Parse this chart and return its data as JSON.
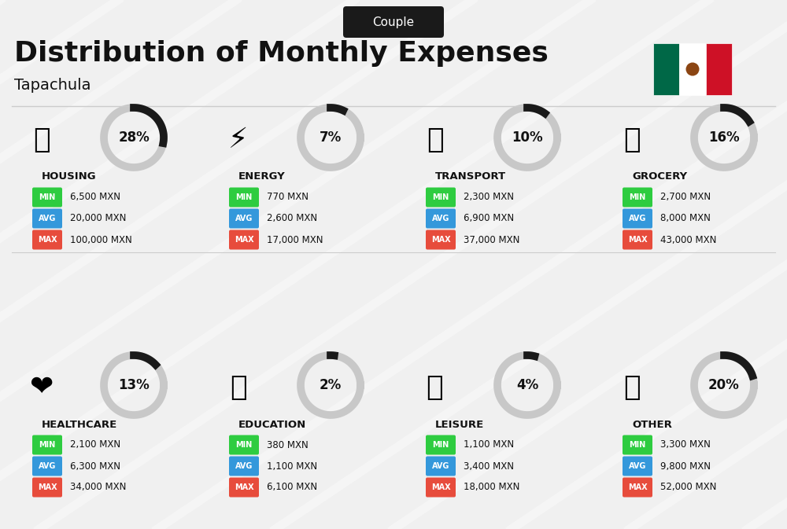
{
  "title": "Distribution of Monthly Expenses",
  "subtitle": "Tapachula",
  "badge": "Couple",
  "bg_color": "#f0f0f0",
  "categories": [
    {
      "name": "HOUSING",
      "pct": 28,
      "icon": "🏢",
      "min": "6,500 MXN",
      "avg": "20,000 MXN",
      "max": "100,000 MXN",
      "col": 0,
      "row": 0
    },
    {
      "name": "ENERGY",
      "pct": 7,
      "icon": "⚡",
      "min": "770 MXN",
      "avg": "2,600 MXN",
      "max": "17,000 MXN",
      "col": 1,
      "row": 0
    },
    {
      "name": "TRANSPORT",
      "pct": 10,
      "icon": "🚌",
      "min": "2,300 MXN",
      "avg": "6,900 MXN",
      "max": "37,000 MXN",
      "col": 2,
      "row": 0
    },
    {
      "name": "GROCERY",
      "pct": 16,
      "icon": "🛒",
      "min": "2,700 MXN",
      "avg": "8,000 MXN",
      "max": "43,000 MXN",
      "col": 3,
      "row": 0
    },
    {
      "name": "HEALTHCARE",
      "pct": 13,
      "icon": "❤️",
      "min": "2,100 MXN",
      "avg": "6,300 MXN",
      "max": "34,000 MXN",
      "col": 0,
      "row": 1
    },
    {
      "name": "EDUCATION",
      "pct": 2,
      "icon": "🎓",
      "min": "380 MXN",
      "avg": "1,100 MXN",
      "max": "6,100 MXN",
      "col": 1,
      "row": 1
    },
    {
      "name": "LEISURE",
      "pct": 4,
      "icon": "🛍️",
      "min": "1,100 MXN",
      "avg": "3,400 MXN",
      "max": "18,000 MXN",
      "col": 2,
      "row": 1
    },
    {
      "name": "OTHER",
      "pct": 20,
      "icon": "💰",
      "min": "3,300 MXN",
      "avg": "9,800 MXN",
      "max": "52,000 MXN",
      "col": 3,
      "row": 1
    }
  ],
  "min_color": "#2ecc40",
  "avg_color": "#3498db",
  "max_color": "#e74c3c",
  "badge_bg": "#1a1a1a",
  "badge_fg": "#ffffff",
  "donut_color": "#1a1a1a",
  "donut_bg": "#c8c8c8"
}
